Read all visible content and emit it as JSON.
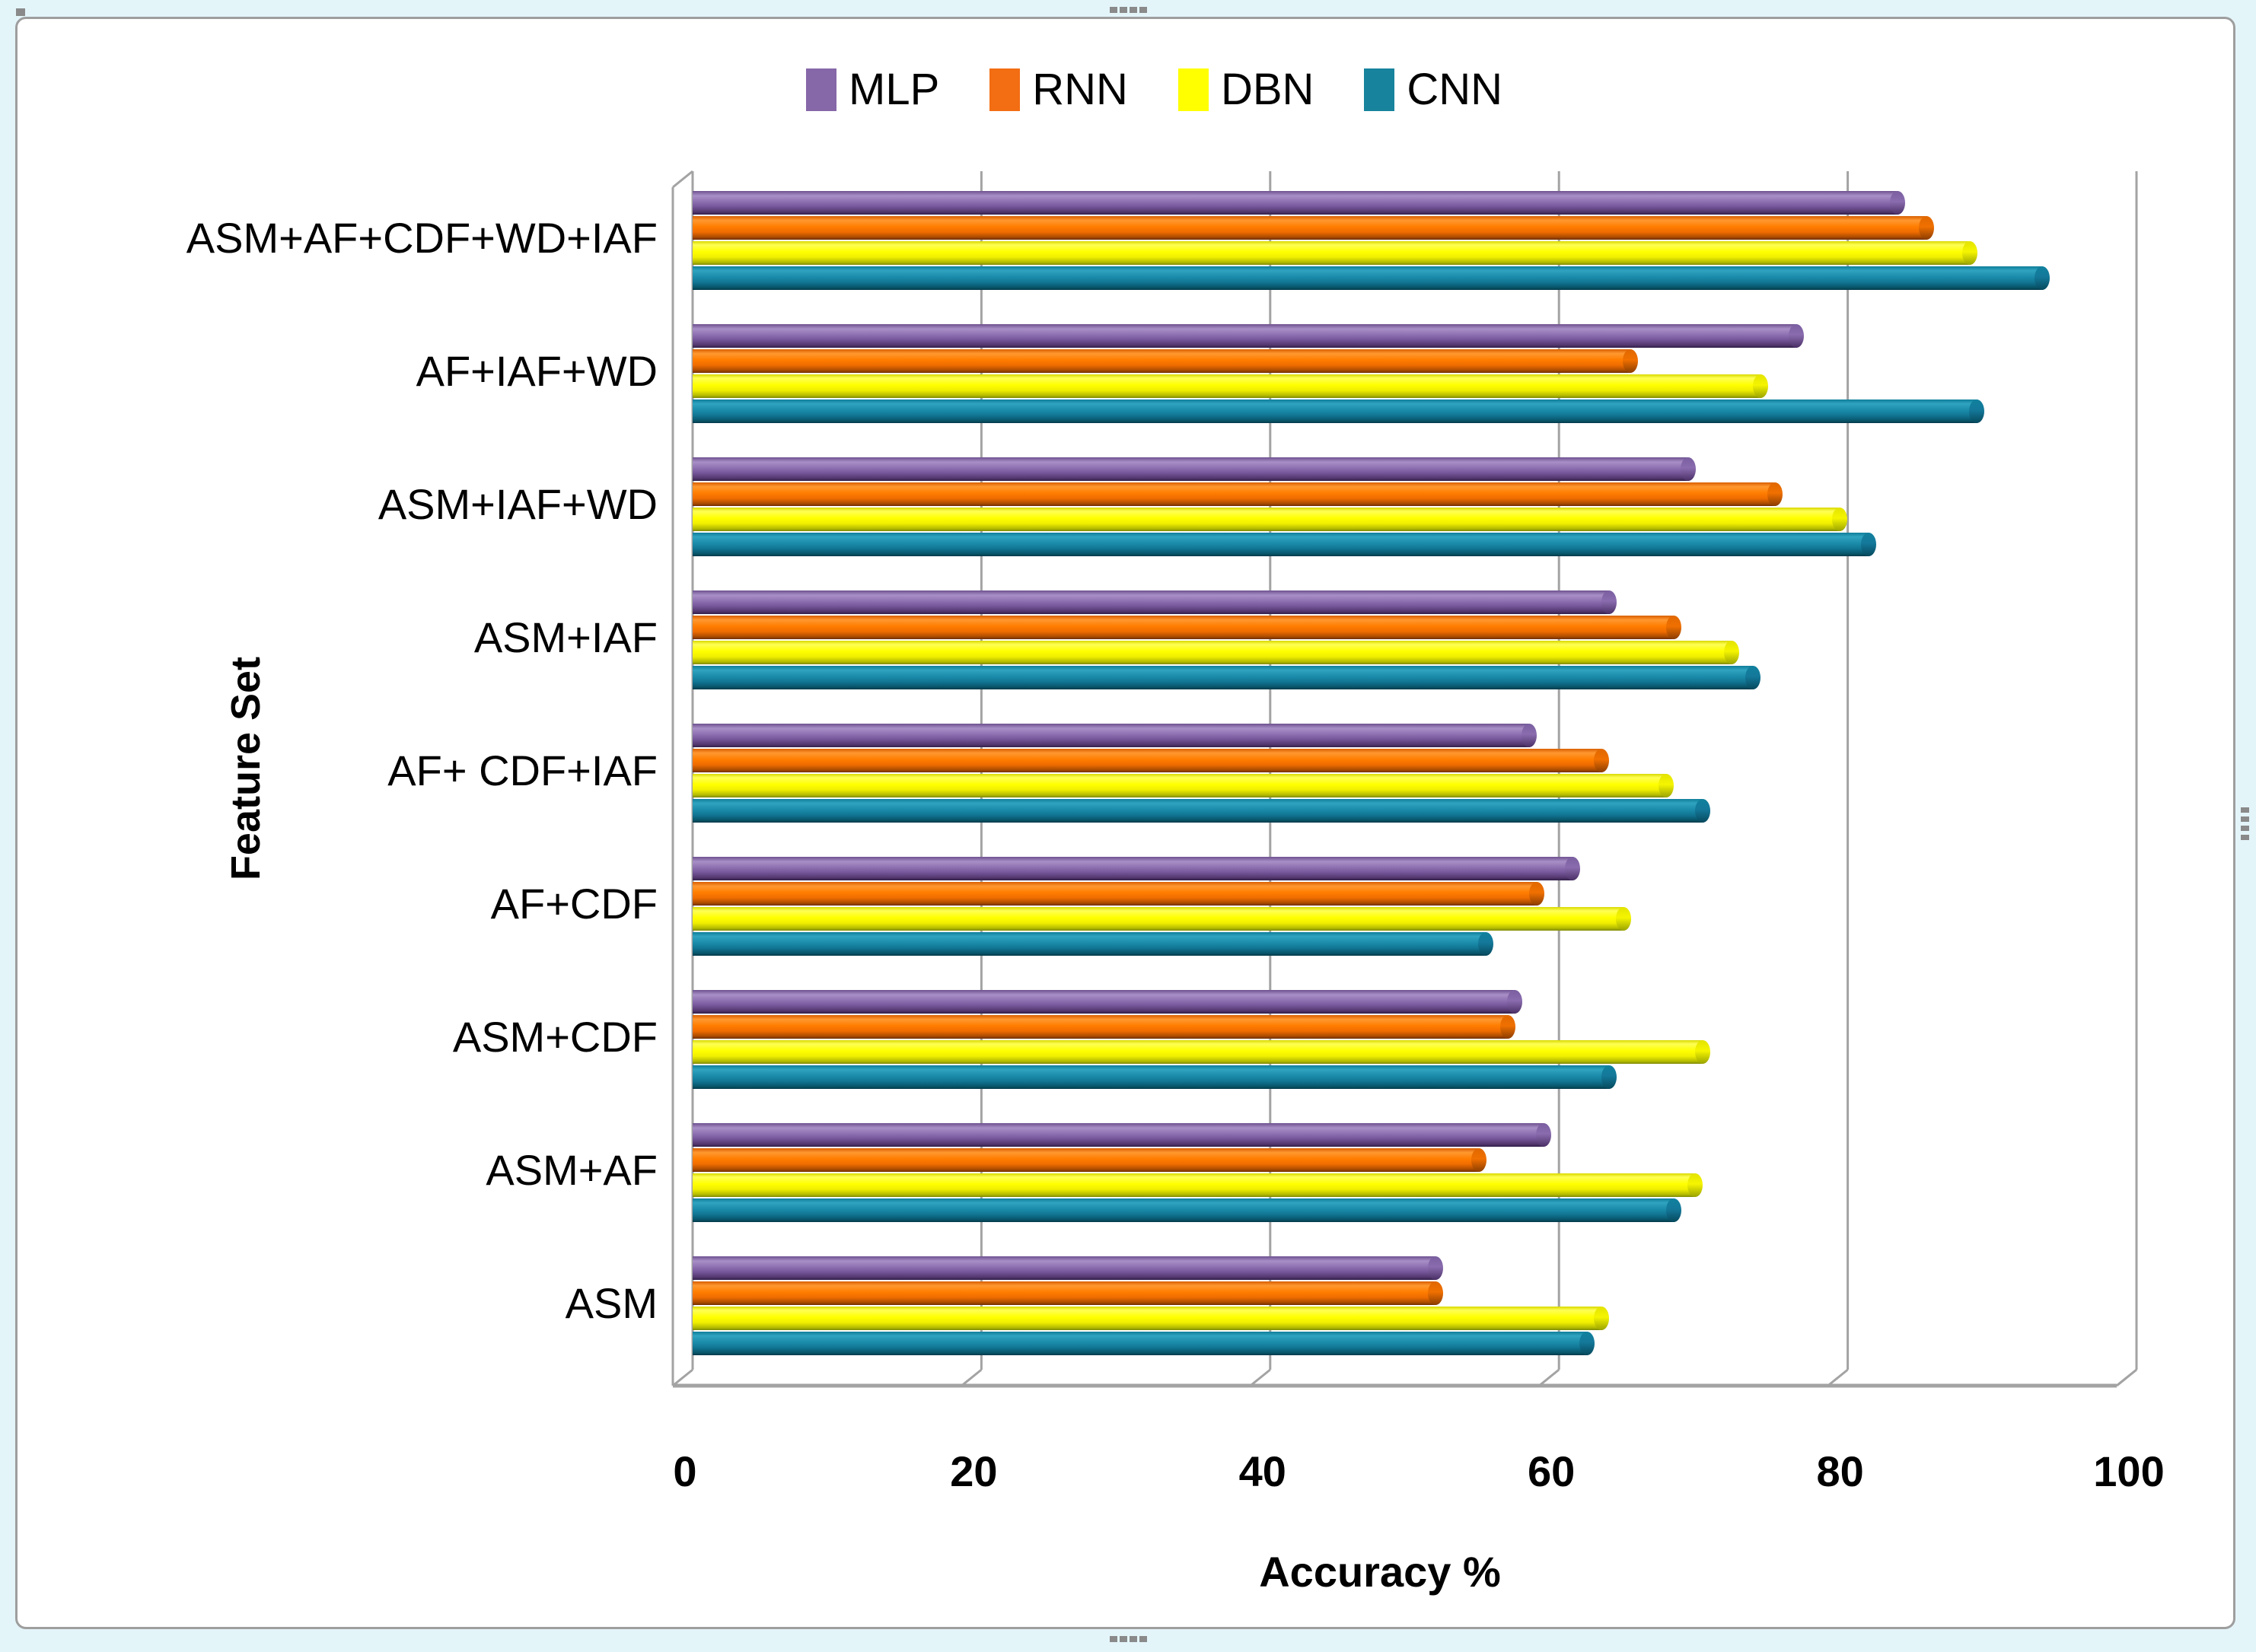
{
  "page": {
    "background_color": "#e4f5fa"
  },
  "figure": {
    "background_color": "#ffffff",
    "border_color": "#9e9e9e"
  },
  "legend": {
    "position": "top-center",
    "items": [
      {
        "label": "MLP",
        "color": "#8667A8"
      },
      {
        "label": "RNN",
        "color": "#F36D13"
      },
      {
        "label": "DBN",
        "color": "#FFFF00"
      },
      {
        "label": "CNN",
        "color": "#17839C"
      }
    ]
  },
  "chart_data": {
    "type": "bar",
    "orientation": "horizontal",
    "style": "3d-cylinder",
    "title": "",
    "xlabel": "Accuracy %",
    "ylabel": "Feature Set",
    "xlim": [
      0,
      100
    ],
    "x_ticks": [
      "0",
      "20",
      "40",
      "60",
      "80",
      "100"
    ],
    "grid": "vertical",
    "legend_position": "top-center",
    "categories_top_to_bottom": [
      "ASM+AF+CDF+WD+IAF",
      "AF+IAF+WD",
      "ASM+IAF+WD",
      "ASM+IAF",
      "AF+ CDF+IAF",
      "AF+CDF",
      "ASM+CDF",
      "ASM+AF",
      "ASM"
    ],
    "series": [
      {
        "name": "MLP",
        "color": "#8667A8",
        "values": [
          83.5,
          76.5,
          69,
          63.5,
          58,
          61,
          57,
          59,
          51.5
        ]
      },
      {
        "name": "RNN",
        "color": "#F36D13",
        "values": [
          85.5,
          65,
          75,
          68,
          63,
          58.5,
          56.5,
          54.5,
          51.5
        ]
      },
      {
        "name": "DBN",
        "color": "#FFFF00",
        "values": [
          88.5,
          74,
          79.5,
          72,
          67.5,
          64.5,
          70,
          69.5,
          63
        ]
      },
      {
        "name": "CNN",
        "color": "#17839C",
        "values": [
          93.5,
          89,
          81.5,
          73.5,
          70,
          55,
          63.5,
          68,
          62
        ]
      }
    ]
  }
}
